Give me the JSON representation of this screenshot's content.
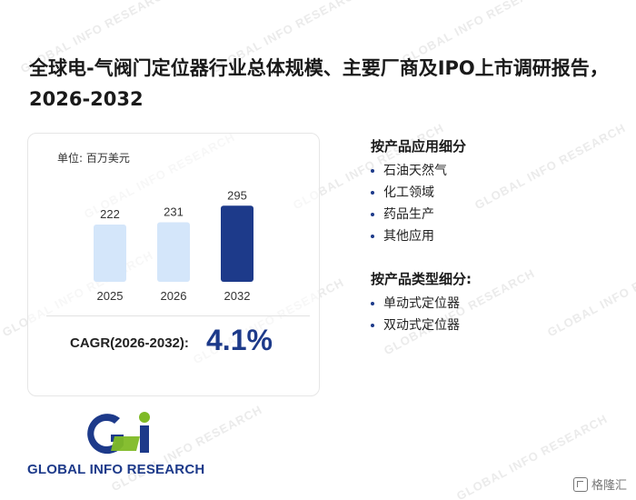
{
  "title": "全球电-气阀门定位器行业总体规模、主要厂商及IPO上市调研报告，2026-2032",
  "card": {
    "unit_label": "单位: 百万美元",
    "cagr_label": "CAGR(2026-2032):",
    "cagr_value": "4.1%"
  },
  "chart_data": {
    "type": "bar",
    "categories": [
      "2025",
      "2026",
      "2032"
    ],
    "values": [
      222,
      231,
      295
    ],
    "value_labels": [
      "222",
      "231",
      "295"
    ],
    "ylim": [
      0,
      320
    ],
    "grid": false,
    "colors": [
      "#d4e6fa",
      "#d4e6fa",
      "#1d3a8a"
    ]
  },
  "segments": {
    "by_application": {
      "title": "按产品应用细分",
      "items": [
        "石油天然气",
        "化工领域",
        "药品生产",
        "其他应用"
      ]
    },
    "by_type": {
      "title": "按产品类型细分:",
      "items": [
        "单动式定位器",
        "双动式定位器"
      ]
    }
  },
  "logo": {
    "text": "GLOBAL INFO RESEARCH"
  },
  "watermark": {
    "text": "GLOBAL INFO RESEARCH"
  },
  "corner_brand": {
    "text": "格隆汇"
  }
}
